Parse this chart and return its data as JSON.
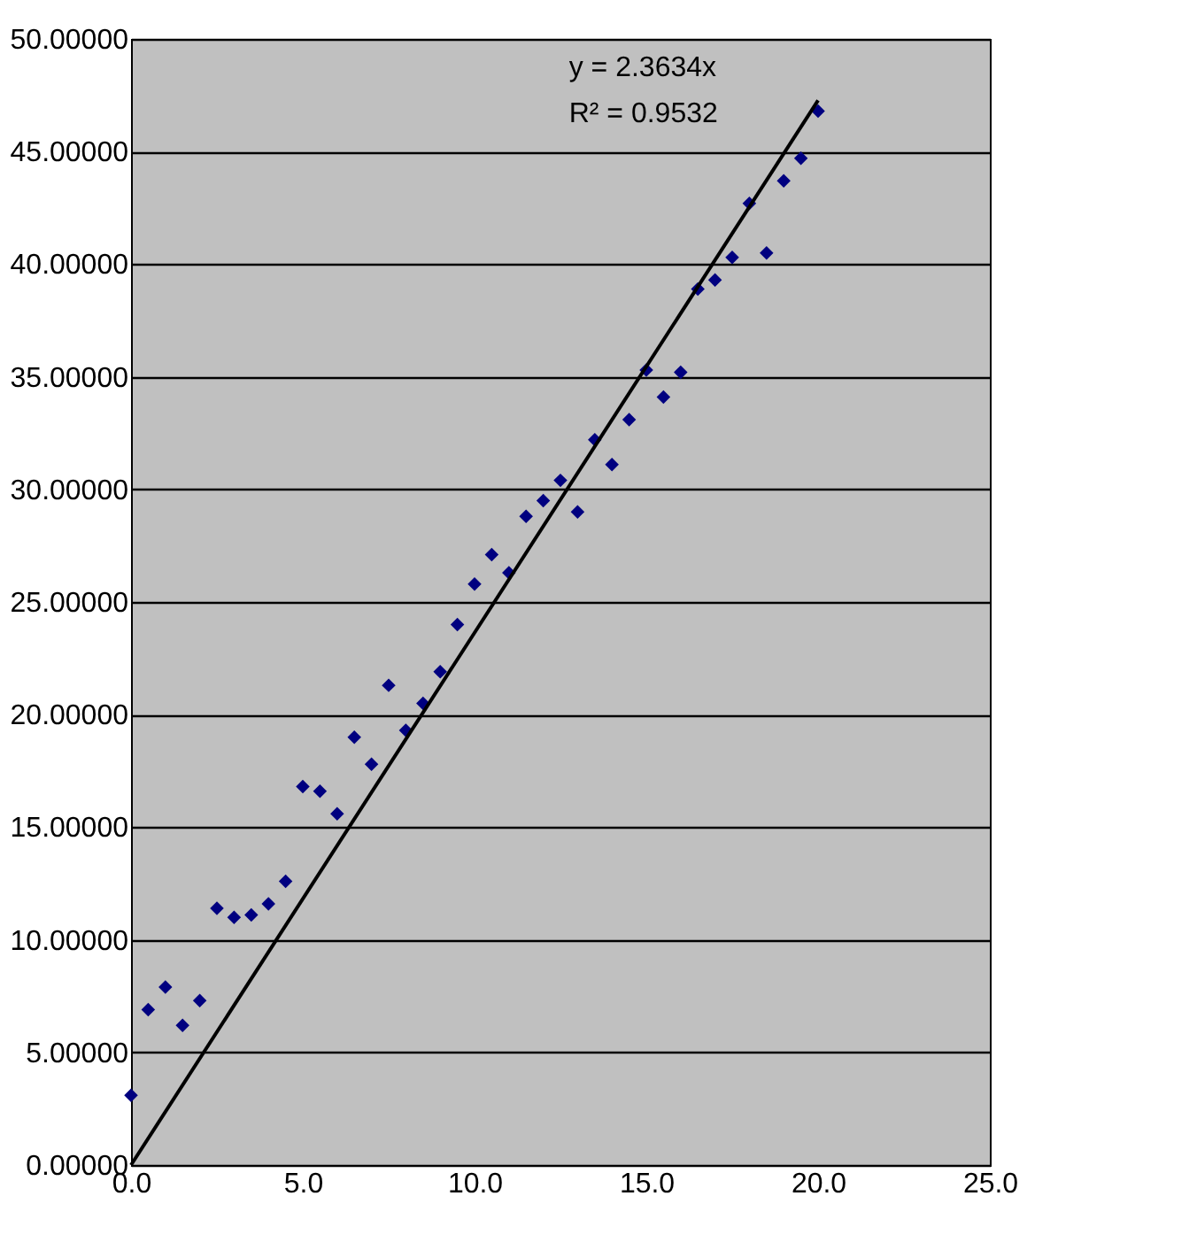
{
  "chart_data": {
    "type": "scatter",
    "marker": "diamond",
    "grid": "y",
    "x": [
      0,
      0.5,
      1,
      1.5,
      2,
      2.5,
      3,
      3.5,
      4,
      4.5,
      5,
      5.5,
      6,
      6.5,
      7,
      7.5,
      8,
      8.5,
      9,
      9.5,
      10,
      10.5,
      11,
      11.5,
      12,
      12.5,
      13,
      13.5,
      14,
      14.5,
      15,
      15.5,
      16,
      16.5,
      17,
      17.5,
      18,
      18.5,
      19,
      19.5,
      20
    ],
    "series": [
      {
        "color": "#000080",
        "values": [
          3.1,
          6.9,
          7.9,
          6.2,
          7.3,
          11.4,
          11.0,
          11.1,
          11.6,
          12.6,
          16.8,
          16.6,
          15.6,
          19.0,
          17.8,
          21.3,
          19.3,
          20.5,
          21.9,
          24.0,
          25.8,
          27.1,
          26.3,
          28.8,
          29.5,
          30.4,
          29.0,
          32.2,
          31.1,
          33.1,
          35.3,
          34.1,
          35.2,
          38.9,
          39.3,
          40.3,
          42.7,
          40.5,
          43.7,
          44.7,
          46.8
        ]
      },
      {
        "type": "line",
        "color": "#000000",
        "marker": "none",
        "line_style": "solid",
        "x": [
          0,
          20
        ],
        "values": [
          0,
          47.27
        ]
      }
    ],
    "annotations": [
      "y = 2.3634x",
      "R² = 0.9532"
    ],
    "xlim": [
      0,
      25
    ],
    "xticks": [
      {
        "value": 0,
        "label": "0.0"
      },
      {
        "value": 5,
        "label": "5.0"
      },
      {
        "value": 10,
        "label": "10.0"
      },
      {
        "value": 15,
        "label": "15.0"
      },
      {
        "value": 20,
        "label": "20.0"
      },
      {
        "value": 25,
        "label": "25.0"
      }
    ],
    "ylim": [
      0,
      50
    ],
    "yticks": [
      {
        "value": 0,
        "label": "0.00000"
      },
      {
        "value": 5,
        "label": "5.00000"
      },
      {
        "value": 10,
        "label": "10.00000"
      },
      {
        "value": 15,
        "label": "15.00000"
      },
      {
        "value": 20,
        "label": "20.00000"
      },
      {
        "value": 25,
        "label": "25.00000"
      },
      {
        "value": 30,
        "label": "30.00000"
      },
      {
        "value": 35,
        "label": "35.00000"
      },
      {
        "value": 40,
        "label": "40.00000"
      },
      {
        "value": 45,
        "label": "45.00000"
      },
      {
        "value": 50,
        "label": "50.00000"
      }
    ]
  }
}
